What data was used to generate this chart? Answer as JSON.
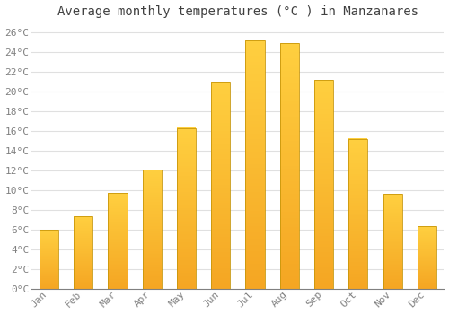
{
  "title": "Average monthly temperatures (°C ) in Manzanares",
  "months": [
    "Jan",
    "Feb",
    "Mar",
    "Apr",
    "May",
    "Jun",
    "Jul",
    "Aug",
    "Sep",
    "Oct",
    "Nov",
    "Dec"
  ],
  "temperatures": [
    6.0,
    7.3,
    9.7,
    12.1,
    16.3,
    21.0,
    25.2,
    24.9,
    21.2,
    15.2,
    9.6,
    6.3
  ],
  "ylim": [
    0,
    27
  ],
  "yticks": [
    0,
    2,
    4,
    6,
    8,
    10,
    12,
    14,
    16,
    18,
    20,
    22,
    24,
    26
  ],
  "bar_color_bottom": "#F5A623",
  "bar_color_top": "#FFD040",
  "bar_edge_color": "#C8960A",
  "background_color": "#FFFFFF",
  "grid_color": "#E0E0E0",
  "tick_label_color": "#808080",
  "title_color": "#404040",
  "title_fontsize": 10,
  "tick_fontsize": 8,
  "bar_width": 0.55
}
